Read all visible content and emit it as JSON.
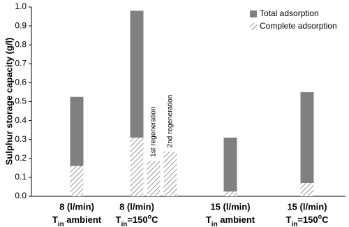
{
  "chart_data": {
    "type": "bar",
    "y_label": "Sulphur storage capacity (g/l)",
    "categories": [
      {
        "rate": "8 (l/min)",
        "temp": [
          "T",
          "in",
          " ambient"
        ]
      },
      {
        "rate": "8 (l/min)",
        "temp": [
          "T",
          "in",
          "=150",
          "o",
          "C"
        ]
      },
      {
        "rate": "15 (l/min)",
        "temp": [
          "T",
          "in",
          " ambient"
        ]
      },
      {
        "rate": "15 (l/min)",
        "temp": [
          "T",
          "in",
          "=150",
          "o",
          "C"
        ]
      }
    ],
    "series": [
      {
        "name": "Total adsorption",
        "color": "#808080",
        "values": [
          0.525,
          0.98,
          0.31,
          0.55
        ]
      },
      {
        "name": "Complete adsorption",
        "color": "#808080",
        "pattern": "hatch",
        "values": [
          0.16,
          0.31,
          0.025,
          0.07
        ]
      }
    ],
    "annotations": [
      {
        "text": "1st regeneration",
        "value": 0.185
      },
      {
        "text": "2nd regeneration",
        "value": 0.235
      }
    ],
    "ylim": [
      0,
      1
    ],
    "yticks": [
      {
        "value": 0,
        "label": "0.0"
      },
      0.1,
      0.2,
      0.3,
      0.4,
      0.5,
      0.6,
      0.7,
      0.8,
      0.9,
      {
        "value": 1,
        "label": "1.0"
      }
    ],
    "legend": "top-right"
  }
}
